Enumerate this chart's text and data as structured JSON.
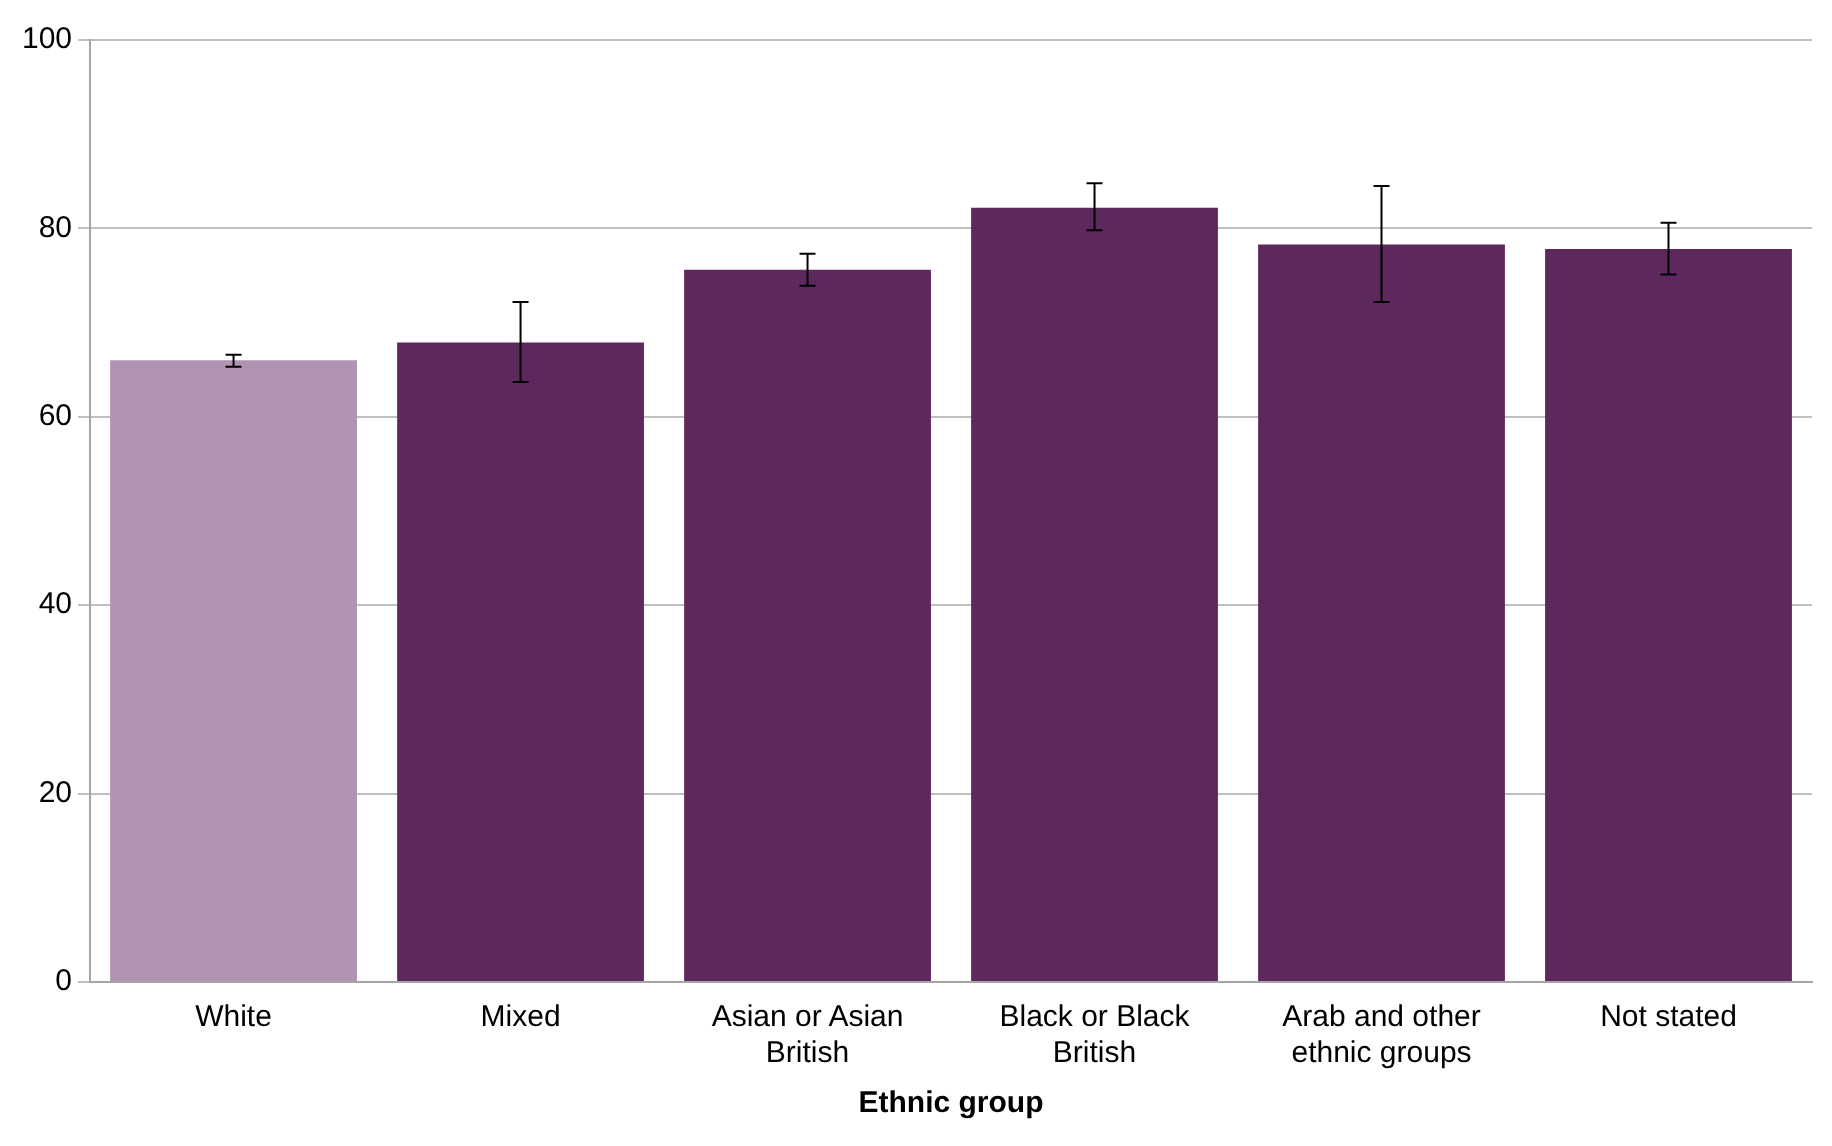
{
  "chart_data": {
    "type": "bar",
    "xlabel": "Ethnic group",
    "categories": [
      "White",
      "Mixed",
      "Asian or Asian British",
      "Black or Black British",
      "Arab and other ethnic groups",
      "Not stated"
    ],
    "values": [
      66.0,
      67.9,
      75.6,
      82.2,
      78.3,
      77.8
    ],
    "colors": [
      "#b093b1",
      "#5e285e",
      "#5e285e",
      "#5e285e",
      "#5e285e",
      "#5e285e"
    ],
    "errors": [
      [
        65.3,
        66.6
      ],
      [
        63.7,
        72.2
      ],
      [
        73.9,
        77.3
      ],
      [
        79.8,
        84.8
      ],
      [
        72.2,
        84.5
      ],
      [
        75.1,
        80.6
      ]
    ],
    "ylim": [
      0,
      100
    ],
    "yticks": [
      0,
      20,
      40,
      60,
      80,
      100
    ],
    "grid": "y",
    "legend": false
  }
}
